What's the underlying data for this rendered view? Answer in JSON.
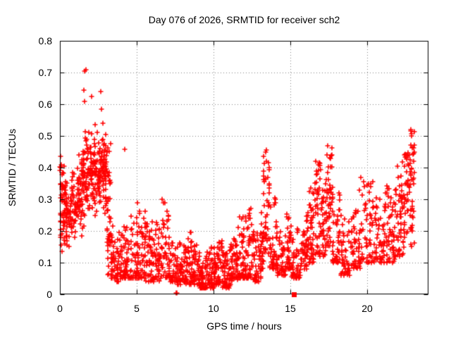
{
  "window": {
    "background": "#ffffff",
    "text_color": "#000000"
  },
  "chart_data": {
    "type": "scatter",
    "title": "Day 076 of 2026, SRMTID for receiver sch2",
    "xlabel": "GPS time / hours",
    "ylabel": "SRMTID / TECUs",
    "series_name": "SRMTID",
    "xlim": [
      0,
      24
    ],
    "ylim": [
      0,
      0.8
    ],
    "x_ticks": [
      {
        "value": 0,
        "label": "0"
      },
      {
        "value": 5,
        "label": "5"
      },
      {
        "value": 10,
        "label": "10"
      },
      {
        "value": 15,
        "label": "15"
      },
      {
        "value": 20,
        "label": "20"
      }
    ],
    "y_ticks": [
      {
        "value": 0.0,
        "label": "0"
      },
      {
        "value": 0.1,
        "label": "0.1"
      },
      {
        "value": 0.2,
        "label": "0.2"
      },
      {
        "value": 0.3,
        "label": "0.3"
      },
      {
        "value": 0.4,
        "label": "0.4"
      },
      {
        "value": 0.5,
        "label": "0.5"
      },
      {
        "value": 0.6,
        "label": "0.6"
      },
      {
        "value": 0.7,
        "label": "0.7"
      },
      {
        "value": 0.8,
        "label": "0.8"
      }
    ],
    "grid": {
      "on": true,
      "x_values": [
        5,
        10,
        15,
        20
      ],
      "y_values": [
        0.1,
        0.2,
        0.3,
        0.4,
        0.5,
        0.6,
        0.7
      ]
    },
    "legend": "none",
    "style": {
      "marker": "plus",
      "marker_color": "#ff0000",
      "marker_size": 7,
      "marker_line_width": 1.6,
      "square_size": 7,
      "grid_color": "#848484",
      "border_color": "#000000",
      "tick_length": 6
    },
    "seed": 42,
    "density_bins": [
      [
        0.0,
        0.35,
        60,
        0.1,
        0.44,
        "m"
      ],
      [
        0.35,
        0.7,
        40,
        0.13,
        0.38,
        "m"
      ],
      [
        0.7,
        1.1,
        45,
        0.15,
        0.4,
        "m"
      ],
      [
        1.1,
        1.5,
        50,
        0.18,
        0.46,
        "m"
      ],
      [
        1.5,
        1.9,
        55,
        0.2,
        0.55,
        "m"
      ],
      [
        1.9,
        2.3,
        55,
        0.2,
        0.52,
        "m"
      ],
      [
        2.3,
        2.7,
        50,
        0.24,
        0.54,
        "m"
      ],
      [
        2.7,
        3.05,
        55,
        0.25,
        0.52,
        "m"
      ],
      [
        3.05,
        3.3,
        40,
        0.06,
        0.48,
        "u"
      ],
      [
        3.3,
        3.7,
        38,
        0.05,
        0.22,
        "l"
      ],
      [
        3.7,
        4.1,
        40,
        0.04,
        0.2,
        "l"
      ],
      [
        4.1,
        4.6,
        42,
        0.05,
        0.23,
        "l"
      ],
      [
        4.6,
        5.1,
        44,
        0.05,
        0.27,
        "l"
      ],
      [
        5.1,
        5.6,
        44,
        0.05,
        0.28,
        "l"
      ],
      [
        5.6,
        6.1,
        44,
        0.04,
        0.24,
        "l"
      ],
      [
        6.1,
        6.6,
        46,
        0.04,
        0.23,
        "l"
      ],
      [
        6.6,
        7.1,
        46,
        0.05,
        0.3,
        "l"
      ],
      [
        7.1,
        7.6,
        44,
        0.04,
        0.18,
        "l"
      ],
      [
        7.6,
        8.1,
        46,
        0.03,
        0.17,
        "l"
      ],
      [
        8.1,
        8.6,
        48,
        0.03,
        0.2,
        "l"
      ],
      [
        8.6,
        9.1,
        48,
        0.03,
        0.16,
        "l"
      ],
      [
        9.1,
        9.6,
        50,
        0.02,
        0.14,
        "l"
      ],
      [
        9.6,
        10.1,
        50,
        0.02,
        0.15,
        "l"
      ],
      [
        10.1,
        10.6,
        50,
        0.03,
        0.17,
        "l"
      ],
      [
        10.6,
        11.1,
        48,
        0.02,
        0.15,
        "l"
      ],
      [
        11.1,
        11.6,
        48,
        0.04,
        0.18,
        "l"
      ],
      [
        11.6,
        12.1,
        50,
        0.05,
        0.25,
        "l"
      ],
      [
        12.1,
        12.6,
        50,
        0.05,
        0.28,
        "l"
      ],
      [
        12.6,
        13.1,
        48,
        0.04,
        0.22,
        "l"
      ],
      [
        13.1,
        13.25,
        20,
        0.08,
        0.28,
        "l"
      ],
      [
        13.25,
        13.65,
        48,
        0.12,
        0.455,
        "u"
      ],
      [
        13.65,
        14.15,
        44,
        0.08,
        0.31,
        "l"
      ],
      [
        14.15,
        14.7,
        42,
        0.06,
        0.2,
        "l"
      ],
      [
        14.7,
        15.05,
        36,
        0.08,
        0.26,
        "l"
      ],
      [
        15.05,
        15.65,
        44,
        0.05,
        0.22,
        "l"
      ],
      [
        15.65,
        16.2,
        44,
        0.08,
        0.26,
        "l"
      ],
      [
        16.2,
        16.6,
        42,
        0.1,
        0.34,
        "l"
      ],
      [
        16.6,
        17.05,
        44,
        0.12,
        0.42,
        "u"
      ],
      [
        17.05,
        17.35,
        34,
        0.12,
        0.35,
        "l"
      ],
      [
        17.35,
        17.75,
        44,
        0.15,
        0.47,
        "u"
      ],
      [
        17.75,
        18.25,
        46,
        0.1,
        0.32,
        "l"
      ],
      [
        18.25,
        19.0,
        50,
        0.06,
        0.25,
        "l"
      ],
      [
        19.0,
        19.6,
        46,
        0.08,
        0.3,
        "l"
      ],
      [
        19.6,
        20.4,
        55,
        0.1,
        0.37,
        "l"
      ],
      [
        20.4,
        21.2,
        55,
        0.1,
        0.32,
        "l"
      ],
      [
        21.2,
        21.8,
        50,
        0.1,
        0.35,
        "l"
      ],
      [
        21.8,
        22.4,
        52,
        0.12,
        0.42,
        "l"
      ],
      [
        22.4,
        22.8,
        40,
        0.15,
        0.45,
        "u"
      ],
      [
        22.8,
        23.1,
        40,
        0.15,
        0.52,
        "u"
      ]
    ],
    "outlier_points": [
      [
        0.05,
        0.435
      ],
      [
        0.1,
        0.41
      ],
      [
        1.62,
        0.705
      ],
      [
        1.7,
        0.71
      ],
      [
        1.58,
        0.645
      ],
      [
        1.6,
        0.61
      ],
      [
        2.05,
        0.625
      ],
      [
        2.67,
        0.64
      ],
      [
        2.72,
        0.585
      ],
      [
        2.3,
        0.535
      ],
      [
        2.82,
        0.54
      ],
      [
        4.2,
        0.458
      ],
      [
        5.05,
        0.29
      ],
      [
        6.65,
        0.3
      ],
      [
        12.05,
        0.245
      ],
      [
        13.45,
        0.455
      ],
      [
        14.02,
        0.3
      ],
      [
        16.65,
        0.42
      ],
      [
        17.42,
        0.47
      ],
      [
        19.5,
        0.33
      ],
      [
        22.86,
        0.52
      ],
      [
        22.9,
        0.5
      ],
      [
        22.94,
        0.465
      ]
    ],
    "zero_points": [
      [
        7.58,
        0.004
      ],
      [
        7.63,
        0.004
      ]
    ],
    "square_points": [
      [
        15.25,
        0.0
      ]
    ]
  }
}
